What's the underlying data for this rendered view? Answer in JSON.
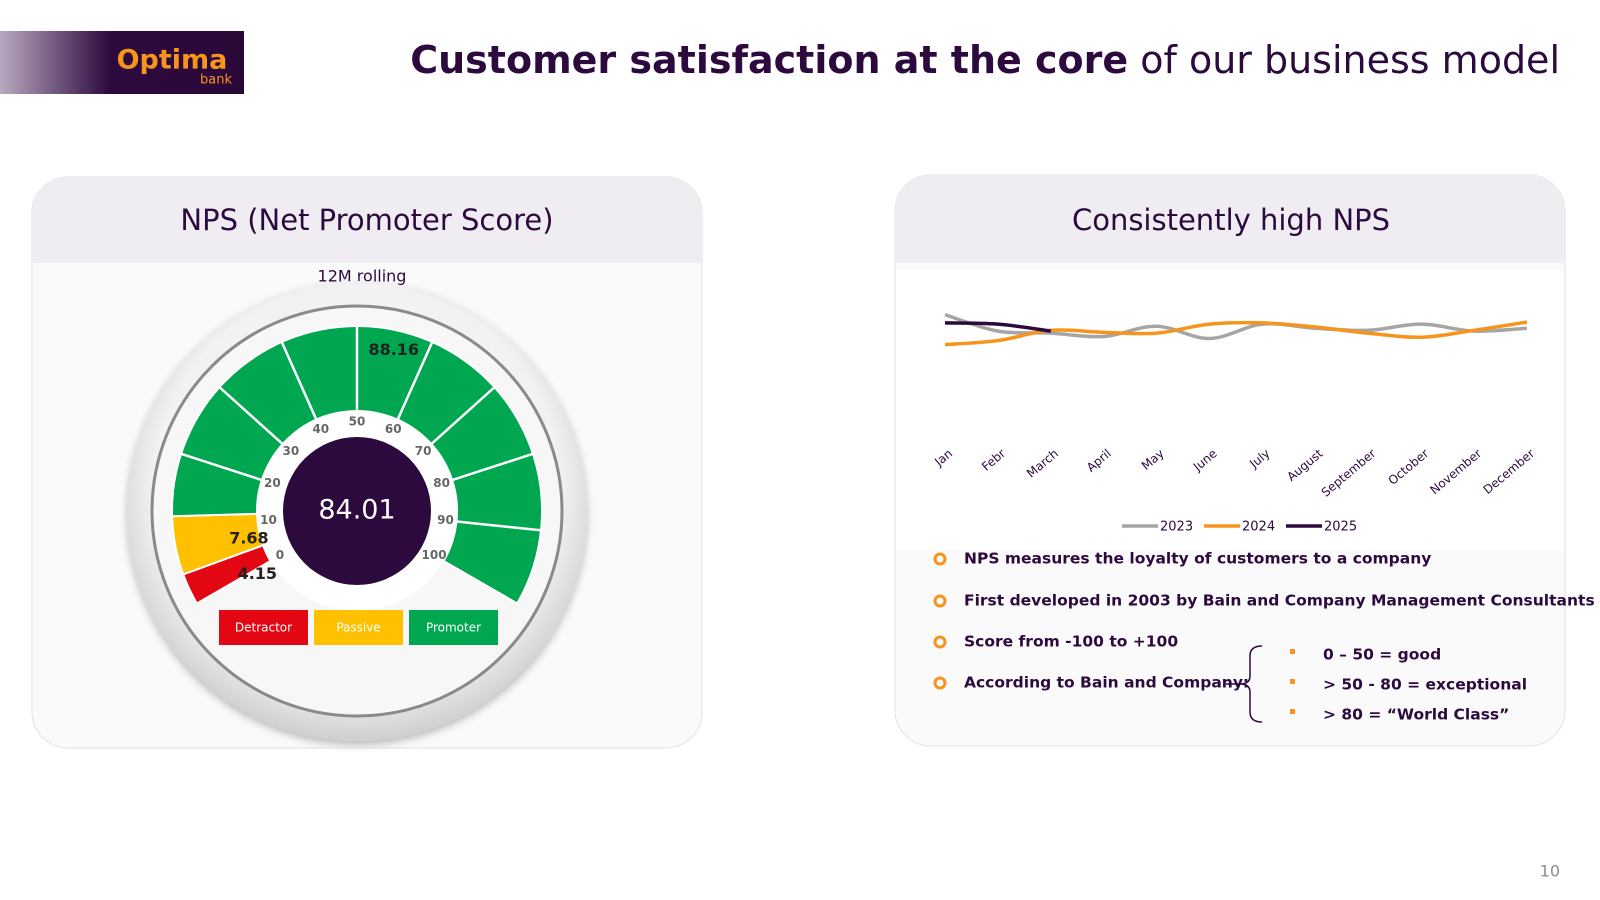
{
  "header": {
    "logo": "Optima",
    "logo_sub": "bank",
    "title_bold": "Customer satisfaction at the core",
    "title_rest": " of our business model"
  },
  "chart_data": [
    {
      "type": "gauge",
      "title": "NPS (Net Promoter Score)",
      "subtitle": "12M rolling",
      "categories": [
        "Detractor",
        "Passive",
        "Promoter"
      ],
      "values": [
        4.15,
        7.68,
        88.16
      ],
      "colors": [
        "#e30613",
        "#ffc000",
        "#00a650"
      ],
      "score": 84.01,
      "xlim": [
        0,
        100
      ],
      "xticks": [
        0,
        10,
        20,
        30,
        40,
        50,
        60,
        70,
        80,
        90,
        100
      ]
    },
    {
      "type": "line",
      "title": "Consistently high NPS",
      "categories": [
        "Jan",
        "Febr",
        "March",
        "April",
        "May",
        "June",
        "July",
        "August",
        "September",
        "October",
        "November",
        "December"
      ],
      "series": [
        {
          "name": "2023",
          "color": "#a5a5a5",
          "values": [
            90.8,
            86.8,
            86.3,
            85.5,
            88,
            85,
            88.5,
            87.5,
            87,
            88.5,
            86.8,
            87.5
          ]
        },
        {
          "name": "2024",
          "color": "#f7941d",
          "values": [
            83.5,
            84.5,
            87,
            86.5,
            86.3,
            88.5,
            88.8,
            87.8,
            86.3,
            85.3,
            87,
            89
          ]
        },
        {
          "name": "2025",
          "color": "#2d0a3e",
          "values": [
            88.8,
            88.5,
            86.8,
            null,
            null,
            null,
            null,
            null,
            null,
            null,
            null,
            null
          ]
        }
      ],
      "ylim": [
        60,
        100
      ]
    }
  ],
  "notes": {
    "bullets": [
      "NPS measures the loyalty of customers to a company",
      "First developed in 2003 by Bain and Company Management Consultants",
      "Score from -100 to +100",
      "According to Bain and Company:"
    ],
    "sub_bullets": [
      "0 – 50 = good",
      "> 50 - 80 = exceptional",
      "> 80 = “World Class”"
    ]
  },
  "page_number": "10"
}
